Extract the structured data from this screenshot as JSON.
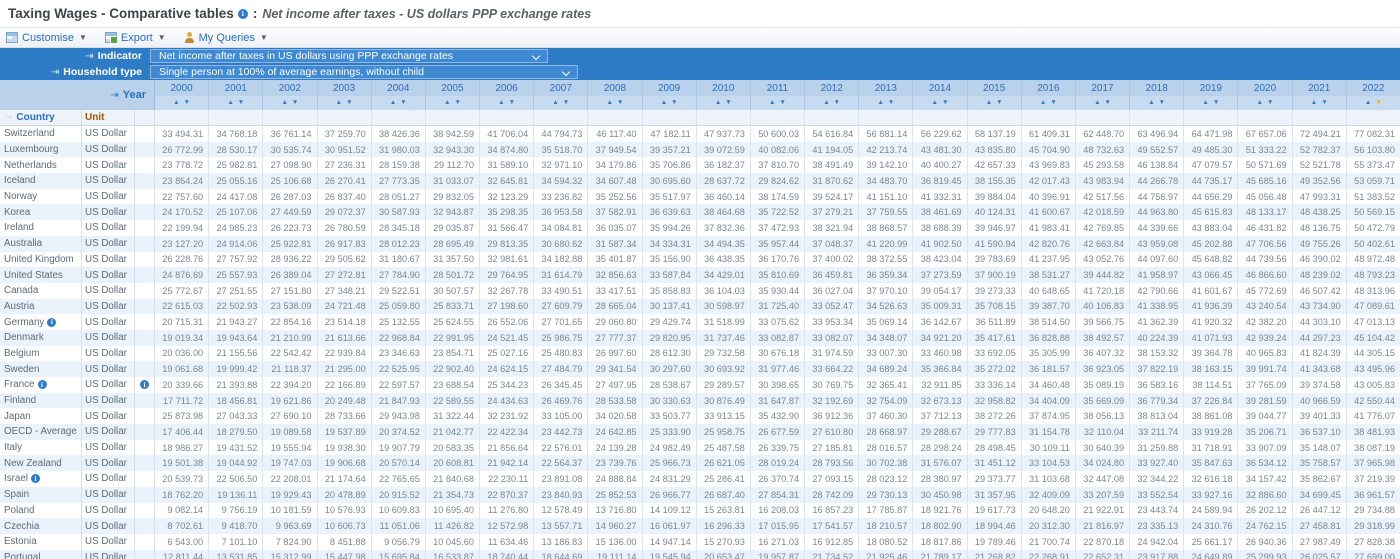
{
  "title": {
    "main": "Taxing Wages - Comparative tables",
    "colon": ":",
    "subtitle": "Net income after taxes - US dollars PPP exchange rates"
  },
  "toolbar": {
    "customise": "Customise",
    "export": "Export",
    "my_queries": "My Queries"
  },
  "filters": {
    "indicator_label": "Indicator",
    "indicator_value": "Net income after taxes in US dollars using PPP exchange rates",
    "household_label": "Household type",
    "household_value": "Single person at 100% of average earnings, without child",
    "year_label": "Year"
  },
  "icons": {
    "pin": "⇥",
    "info": "i",
    "caret": "▼",
    "sort_asc": "▲",
    "sort_desc": "▼"
  },
  "colors": {
    "accent_blue": "#2e7cc6",
    "year_band": "#b9d1ea",
    "sort_active": "#f0b70a",
    "unit_header": "#a05a00",
    "row_stripe": "#eaf2fb"
  },
  "table": {
    "country_header": "Country",
    "unit_header": "Unit",
    "unit_value": "US Dollar",
    "sorted_year": "2022",
    "years": [
      "2000",
      "2001",
      "2002",
      "2003",
      "2004",
      "2005",
      "2006",
      "2007",
      "2008",
      "2009",
      "2010",
      "2011",
      "2012",
      "2013",
      "2014",
      "2015",
      "2016",
      "2017",
      "2018",
      "2019",
      "2020",
      "2021",
      "2022"
    ],
    "rows": [
      {
        "country": "Switzerland",
        "info": false,
        "row_info": false,
        "values": [
          "33 494.31",
          "34 768.18",
          "36 761.14",
          "37 259.70",
          "38 426.36",
          "38 942.59",
          "41 706.04",
          "44 794.73",
          "46 117.40",
          "47 182.11",
          "47 937.73",
          "50 600.03",
          "54 616.84",
          "56 881.14",
          "56 229.62",
          "58 137.19",
          "61 409.31",
          "62 448.70",
          "63 496.94",
          "64 471.98",
          "67 657.06",
          "72 494.21",
          "77 082.31"
        ]
      },
      {
        "country": "Luxembourg",
        "info": false,
        "row_info": false,
        "values": [
          "26 772.99",
          "28 530.17",
          "30 535.74",
          "30 951.52",
          "31 980.03",
          "32 943.30",
          "34 874.80",
          "35 518.70",
          "37 949.54",
          "39 357.21",
          "39 072.59",
          "40 082.06",
          "41 194.05",
          "42 213.74",
          "43 481.30",
          "43 835.80",
          "45 704.90",
          "48 732.63",
          "49 552.57",
          "49 485.30",
          "51 333.22",
          "52 782.37",
          "56 103.80"
        ]
      },
      {
        "country": "Netherlands",
        "info": false,
        "row_info": false,
        "values": [
          "23 778.72",
          "25 982.81",
          "27 098.90",
          "27 236.31",
          "28 159.38",
          "29 112.70",
          "31 589.10",
          "32 971.10",
          "34 179.86",
          "35 706.86",
          "36 182.37",
          "37 810.70",
          "38 491.49",
          "39 142.10",
          "40 400.27",
          "42 657.33",
          "43 969.83",
          "45 293.58",
          "46 138.84",
          "47 079.57",
          "50 571.69",
          "52 521.78",
          "55 373.47"
        ]
      },
      {
        "country": "Iceland",
        "info": false,
        "row_info": false,
        "values": [
          "23 864.24",
          "25 055.16",
          "25 106.68",
          "26 270.41",
          "27 773.35",
          "31 033.07",
          "32 645.81",
          "34 594.32",
          "34 607.48",
          "30 695.60",
          "28 637.72",
          "29 824.62",
          "31 870.62",
          "34 483.70",
          "36 819.45",
          "38 155.35",
          "42 017.43",
          "43 983.94",
          "44 266.78",
          "44 735.17",
          "45 685.16",
          "49 352.56",
          "53 059.71"
        ]
      },
      {
        "country": "Norway",
        "info": false,
        "row_info": false,
        "values": [
          "22 757.60",
          "24 417.08",
          "26 287.03",
          "26 837.40",
          "28 051.27",
          "29 832.05",
          "32 123.29",
          "33 236.82",
          "35 252.56",
          "35 517.97",
          "36 460.14",
          "38 174.59",
          "39 524.17",
          "41 151.10",
          "41 332.31",
          "39 884.04",
          "40 396.91",
          "42 517.56",
          "44 756.97",
          "44 656.29",
          "45 056.48",
          "47 993.31",
          "51 383.52"
        ]
      },
      {
        "country": "Korea",
        "info": false,
        "row_info": false,
        "values": [
          "24 170.52",
          "25 107.06",
          "27 449.59",
          "29 072.37",
          "30 587.93",
          "32 943.87",
          "35 298.35",
          "36 953.58",
          "37 582.91",
          "36 639.63",
          "38 464.68",
          "35 722.52",
          "37 279.21",
          "37 759.55",
          "38 461.69",
          "40 124.31",
          "41 600.67",
          "42 018.59",
          "44 963.80",
          "45 615.83",
          "48 133.17",
          "48 438.25",
          "50 569.15"
        ]
      },
      {
        "country": "Ireland",
        "info": false,
        "row_info": false,
        "values": [
          "22 199.94",
          "24 985.23",
          "26 223.73",
          "26 780.59",
          "28 345.18",
          "29 035.87",
          "31 566.47",
          "34 084.81",
          "36 035.07",
          "35 994.26",
          "37 832.36",
          "37 472.93",
          "38 321.94",
          "38 868.57",
          "38 688.39",
          "39 946.97",
          "41 983.41",
          "42 769.85",
          "44 339.66",
          "43 883.04",
          "46 431.82",
          "48 136.75",
          "50 472.79"
        ]
      },
      {
        "country": "Australia",
        "info": false,
        "row_info": false,
        "values": [
          "23 127.20",
          "24 914.06",
          "25 922.81",
          "26 917.83",
          "28 012.23",
          "28 695.49",
          "29 813.35",
          "30 680.62",
          "31 587.34",
          "34 334.31",
          "34 494.35",
          "35 957.44",
          "37 048.37",
          "41 220.99",
          "41 902.50",
          "41 590.94",
          "42 820.76",
          "42 663.84",
          "43 959.08",
          "45 202.88",
          "47 706.56",
          "49 755.26",
          "50 402.61"
        ]
      },
      {
        "country": "United Kingdom",
        "info": false,
        "row_info": false,
        "values": [
          "26 228.76",
          "27 757.92",
          "28 936.22",
          "29 505.62",
          "31 180.67",
          "31 357.50",
          "32 981.61",
          "34 182.88",
          "35 401.87",
          "35 156.90",
          "36 438.35",
          "36 170.76",
          "37 400.02",
          "38 372.55",
          "38 423.04",
          "39 783.69",
          "41 237.95",
          "43 052.76",
          "44 097.60",
          "45 648.82",
          "44 739.56",
          "46 390.02",
          "48 972.48"
        ]
      },
      {
        "country": "United States",
        "info": false,
        "row_info": false,
        "values": [
          "24 876.69",
          "25 557.93",
          "26 389.04",
          "27 272.81",
          "27 784.90",
          "28 501.72",
          "29 764.95",
          "31 614.79",
          "32 856.63",
          "33 587.84",
          "34 429.01",
          "35 810.69",
          "36 459.81",
          "36 359.34",
          "37 273.59",
          "37 900.19",
          "38 531.27",
          "39 444.82",
          "41 958.97",
          "43 066.45",
          "46 866.60",
          "48 239.02",
          "48 793.23"
        ]
      },
      {
        "country": "Canada",
        "info": false,
        "row_info": false,
        "values": [
          "25 772.67",
          "27 251.55",
          "27 151.80",
          "27 348.21",
          "29 522.51",
          "30 507.57",
          "32 267.78",
          "33 490.51",
          "33 417.51",
          "35 858.83",
          "36 104.03",
          "35 930.44",
          "36 027.04",
          "37 970.10",
          "39 054.17",
          "39 273.33",
          "40 648.65",
          "41 720.18",
          "42 790.66",
          "41 601.67",
          "45 772.69",
          "46 507.42",
          "48 313.96"
        ]
      },
      {
        "country": "Austria",
        "info": false,
        "row_info": false,
        "values": [
          "22 615.03",
          "22 502.93",
          "23 538.09",
          "24 721.48",
          "25 059.80",
          "25 833.71",
          "27 198.60",
          "27 609.79",
          "28 665.04",
          "30 137.41",
          "30 598.97",
          "31 725.40",
          "33 052.47",
          "34 526.63",
          "35 009.31",
          "35 708.15",
          "39 387.70",
          "40 106.83",
          "41 338.95",
          "41 936.39",
          "43 240.54",
          "43 734.90",
          "47 089.61"
        ]
      },
      {
        "country": "Germany",
        "info": true,
        "row_info": false,
        "values": [
          "20 715.31",
          "21 943.27",
          "22 854.16",
          "23 514.18",
          "25 132.55",
          "25 624.55",
          "26 552.06",
          "27 701.65",
          "29 060.80",
          "29 429.74",
          "31 518.99",
          "33 075.62",
          "33 953.34",
          "35 069.14",
          "36 142.67",
          "36 511.89",
          "38 514.50",
          "39 566.75",
          "41 362.39",
          "41 920.32",
          "42 382.20",
          "44 303.10",
          "47 013.13"
        ]
      },
      {
        "country": "Denmark",
        "info": false,
        "row_info": false,
        "values": [
          "19 019.34",
          "19 943.64",
          "21 210.99",
          "21 613.66",
          "22 968.84",
          "22 991.95",
          "24 521.45",
          "25 986.75",
          "27 777.37",
          "29 820.95",
          "31 737.46",
          "33 082.87",
          "33 082.07",
          "34 348.07",
          "34 921.20",
          "35 417.61",
          "36 828.88",
          "38 492.57",
          "40 224.39",
          "41 071.93",
          "42 939.24",
          "44 297.23",
          "45 104.42"
        ]
      },
      {
        "country": "Belgium",
        "info": false,
        "row_info": false,
        "values": [
          "20 036.00",
          "21 155.56",
          "22 542.42",
          "22 939.84",
          "23 346.63",
          "23 854.71",
          "25 027.16",
          "25 480.83",
          "26 997.60",
          "28 612.30",
          "29 732.58",
          "30 676.18",
          "31 974.59",
          "33 007.30",
          "33 460.98",
          "33 692.05",
          "35 305.99",
          "36 407.32",
          "38 153.32",
          "39 364.78",
          "40 965.83",
          "41 824.39",
          "44 305.15"
        ]
      },
      {
        "country": "Sweden",
        "info": false,
        "row_info": false,
        "values": [
          "19 061.68",
          "19 999.42",
          "21 118.37",
          "21 295.00",
          "22 525.95",
          "22 902.40",
          "24 624.15",
          "27 484.79",
          "29 341.54",
          "30 297.60",
          "30 693.92",
          "31 977.46",
          "33 664.22",
          "34 689.24",
          "35 366.84",
          "35 272.02",
          "36 181.57",
          "36 923.05",
          "37 822.19",
          "38 163.15",
          "39 991.74",
          "41 343.68",
          "43 495.96"
        ]
      },
      {
        "country": "France",
        "info": true,
        "row_info": true,
        "values": [
          "20 339.66",
          "21 393.88",
          "22 394.20",
          "22 166.89",
          "22 597.57",
          "23 688.54",
          "25 344.23",
          "26 345.45",
          "27 497.95",
          "28 538.67",
          "29 289.57",
          "30 398.65",
          "30 769.75",
          "32 365.41",
          "32 911.85",
          "33 336.14",
          "34 460.48",
          "35 089.19",
          "36 583.16",
          "38 114.51",
          "37 765.09",
          "39 374.58",
          "43 005.83"
        ]
      },
      {
        "country": "Finland",
        "info": false,
        "row_info": false,
        "values": [
          "17 711.72",
          "18 456.81",
          "19 621.86",
          "20 249.48",
          "21 847.93",
          "22 589.55",
          "24 434.63",
          "26 469.76",
          "28 533.58",
          "30 330.63",
          "30 876.49",
          "31 647.87",
          "32 192.69",
          "32 754.09",
          "32 673.13",
          "32 958.82",
          "34 404.09",
          "35 669.09",
          "36 779.34",
          "37 226.84",
          "39 281.59",
          "40 966.59",
          "42 550.44"
        ]
      },
      {
        "country": "Japan",
        "info": false,
        "row_info": false,
        "values": [
          "25 873.98",
          "27 043.33",
          "27 690.10",
          "28 733.66",
          "29 943.98",
          "31 322.44",
          "32 231.92",
          "33 105.00",
          "34 020.58",
          "33 503.77",
          "33 913.15",
          "35 432.90",
          "36 912.36",
          "37 460.30",
          "37 712.13",
          "38 272.26",
          "37 874.95",
          "38 056.13",
          "38 813.04",
          "38 861.08",
          "39 044.77",
          "39 401.33",
          "41 776.07"
        ]
      },
      {
        "country": "OECD - Average",
        "info": false,
        "row_info": false,
        "values": [
          "17 406.44",
          "18 279.50",
          "19 089.58",
          "19 537.89",
          "20 374.52",
          "21 042.77",
          "22 422.34",
          "23 442.73",
          "24 642.85",
          "25 333.90",
          "25 958.75",
          "26 677.59",
          "27 610.80",
          "28 668.97",
          "29 288.67",
          "29 777.83",
          "31 154.78",
          "32 110.04",
          "33 211.74",
          "33 919.28",
          "35 206.71",
          "36 537.10",
          "38 481.93"
        ]
      },
      {
        "country": "Italy",
        "info": false,
        "row_info": false,
        "values": [
          "18 986.27",
          "19 431.52",
          "19 555.94",
          "19 938.30",
          "19 907.79",
          "20 583.35",
          "21 856.64",
          "22 576.01",
          "24 139.28",
          "24 982.49",
          "25 487.58",
          "26 339.75",
          "27 185.81",
          "28 016.57",
          "28 298.24",
          "28 498.45",
          "30 109.11",
          "30 640.39",
          "31 259.88",
          "31 718.91",
          "33 907.09",
          "35 148.07",
          "38 087.19"
        ]
      },
      {
        "country": "New Zealand",
        "info": false,
        "row_info": false,
        "values": [
          "19 501.38",
          "19 044.92",
          "19 747.03",
          "19 906.68",
          "20 570.14",
          "20 608.81",
          "21 942.14",
          "22 564.37",
          "23 739.76",
          "25 966.73",
          "26 621.05",
          "28 019.24",
          "28 793.56",
          "30 702.38",
          "31 576.07",
          "31 451.12",
          "33 104.53",
          "34 024.80",
          "33 927.40",
          "35 847.63",
          "36 534.12",
          "35 758.57",
          "37 965.98"
        ]
      },
      {
        "country": "Israel",
        "info": true,
        "row_info": false,
        "values": [
          "20 539.73",
          "22 506.50",
          "22 208.01",
          "21 174.64",
          "22 765.65",
          "21 840.68",
          "22 230.11",
          "23 891.08",
          "24 888.84",
          "24 831.29",
          "25 286.41",
          "26 370.74",
          "27 093.15",
          "28 023.12",
          "28 380.97",
          "29 373.77",
          "31 103.68",
          "32 447.08",
          "32 344.22",
          "32 616.18",
          "34 157.42",
          "35 862.67",
          "37 219.39"
        ]
      },
      {
        "country": "Spain",
        "info": false,
        "row_info": false,
        "values": [
          "18 762.20",
          "19 136.11",
          "19 929.43",
          "20 478.89",
          "20 915.52",
          "21 354.73",
          "22 870.37",
          "23 840.93",
          "25 852.53",
          "26 966.77",
          "26 687.40",
          "27 854.31",
          "28 742.09",
          "29 730.13",
          "30 450.98",
          "31 357.95",
          "32 409.09",
          "33 207.59",
          "33 552.54",
          "33 927.16",
          "32 886.60",
          "34 699.45",
          "36 961.57"
        ]
      },
      {
        "country": "Poland",
        "info": false,
        "row_info": false,
        "values": [
          "9 082.14",
          "9 756.19",
          "10 181.59",
          "10 576.93",
          "10 609.83",
          "10 695.40",
          "11 276.80",
          "12 578.49",
          "13 716.80",
          "14 109.12",
          "15 263.81",
          "16 208.03",
          "16 857.23",
          "17 785.87",
          "18 921.76",
          "19 617.73",
          "20 648.20",
          "21 922.91",
          "23 443.74",
          "24 589.94",
          "26 202.12",
          "26 447.12",
          "29 734.88"
        ]
      },
      {
        "country": "Czechia",
        "info": false,
        "row_info": false,
        "values": [
          "8 702.61",
          "9 418.70",
          "9 963.69",
          "10 606.73",
          "11 051.06",
          "11 426.82",
          "12 572.98",
          "13 557.71",
          "14 960.27",
          "16 061.97",
          "16 296.33",
          "17 015.95",
          "17 541.57",
          "18 210.57",
          "18 802.90",
          "18 994.46",
          "20 312.30",
          "21 816.97",
          "23 335.13",
          "24 310.76",
          "24 762.15",
          "27 458.81",
          "29 318.99"
        ]
      },
      {
        "country": "Estonia",
        "info": false,
        "row_info": false,
        "values": [
          "6 543.00",
          "7 101.10",
          "7 824.90",
          "8 451.88",
          "9 056.79",
          "10 045.60",
          "11 634.46",
          "13 186.83",
          "15 136.00",
          "14 947.14",
          "15 270.93",
          "16 271.03",
          "16 912.85",
          "18 080.52",
          "18 817.86",
          "19 789.46",
          "21 700.74",
          "22 870.18",
          "24 942.04",
          "25 661.17",
          "26 940.36",
          "27 987.49",
          "27 828.38"
        ]
      },
      {
        "country": "Portugal",
        "info": false,
        "row_info": false,
        "values": [
          "12 811.44",
          "13 531.85",
          "15 312.99",
          "15 447.98",
          "15 695.84",
          "16 533.87",
          "18 740.44",
          "18 644.69",
          "19 111.14",
          "19 545.94",
          "20 653.47",
          "19 957.87",
          "21 734.52",
          "21 925.46",
          "21 789.17",
          "21 268.82",
          "22 268.91",
          "22 652.31",
          "23 917.88",
          "24 649.89",
          "25 299.93",
          "26 025.57",
          "27 699.00"
        ]
      }
    ]
  }
}
